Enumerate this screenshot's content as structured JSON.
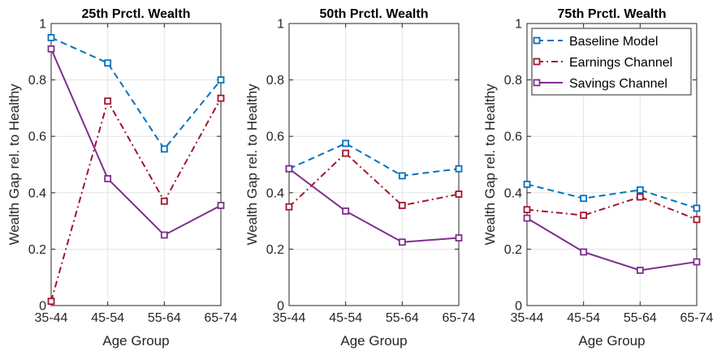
{
  "chart_data": [
    {
      "type": "line",
      "title": "25th Prctl. Wealth",
      "xlabel": "Age Group",
      "ylabel": "Wealth Gap rel. to Healthy",
      "categories": [
        "35-44",
        "45-54",
        "55-64",
        "65-74"
      ],
      "ylim": [
        0,
        1
      ],
      "yticks": [
        "0",
        "0.2",
        "0.4",
        "0.6",
        "0.8",
        "1"
      ],
      "grid": true,
      "series": [
        {
          "name": "Baseline Model",
          "values": [
            0.95,
            0.86,
            0.555,
            0.8
          ]
        },
        {
          "name": "Earnings Channel",
          "values": [
            0.015,
            0.725,
            0.37,
            0.735
          ]
        },
        {
          "name": "Savings Channel",
          "values": [
            0.91,
            0.45,
            0.25,
            0.355
          ]
        }
      ]
    },
    {
      "type": "line",
      "title": "50th Prctl. Wealth",
      "xlabel": "Age Group",
      "ylabel": "Wealth Gap rel. to Healthy",
      "categories": [
        "35-44",
        "45-54",
        "55-64",
        "65-74"
      ],
      "ylim": [
        0,
        1
      ],
      "yticks": [
        "0",
        "0.2",
        "0.4",
        "0.6",
        "0.8",
        "1"
      ],
      "grid": true,
      "series": [
        {
          "name": "Baseline Model",
          "values": [
            0.485,
            0.575,
            0.46,
            0.485
          ]
        },
        {
          "name": "Earnings Channel",
          "values": [
            0.35,
            0.54,
            0.355,
            0.395
          ]
        },
        {
          "name": "Savings Channel",
          "values": [
            0.485,
            0.335,
            0.225,
            0.24
          ]
        }
      ]
    },
    {
      "type": "line",
      "title": "75th Prctl. Wealth",
      "xlabel": "Age Group",
      "ylabel": "Wealth Gap rel. to Healthy",
      "categories": [
        "35-44",
        "45-54",
        "55-64",
        "65-74"
      ],
      "ylim": [
        0,
        1
      ],
      "yticks": [
        "0",
        "0.2",
        "0.4",
        "0.6",
        "0.8",
        "1"
      ],
      "grid": true,
      "legend": "top-right",
      "series": [
        {
          "name": "Baseline Model",
          "values": [
            0.43,
            0.38,
            0.41,
            0.345
          ]
        },
        {
          "name": "Earnings Channel",
          "values": [
            0.34,
            0.32,
            0.385,
            0.305
          ]
        },
        {
          "name": "Savings Channel",
          "values": [
            0.31,
            0.19,
            0.125,
            0.155
          ]
        }
      ]
    }
  ],
  "styles": {
    "series_colors": [
      "#0072BD",
      "#A2142F",
      "#7E2F8E"
    ],
    "series_dash": [
      "dashed",
      "dashdot",
      "solid"
    ],
    "marker": "square"
  }
}
